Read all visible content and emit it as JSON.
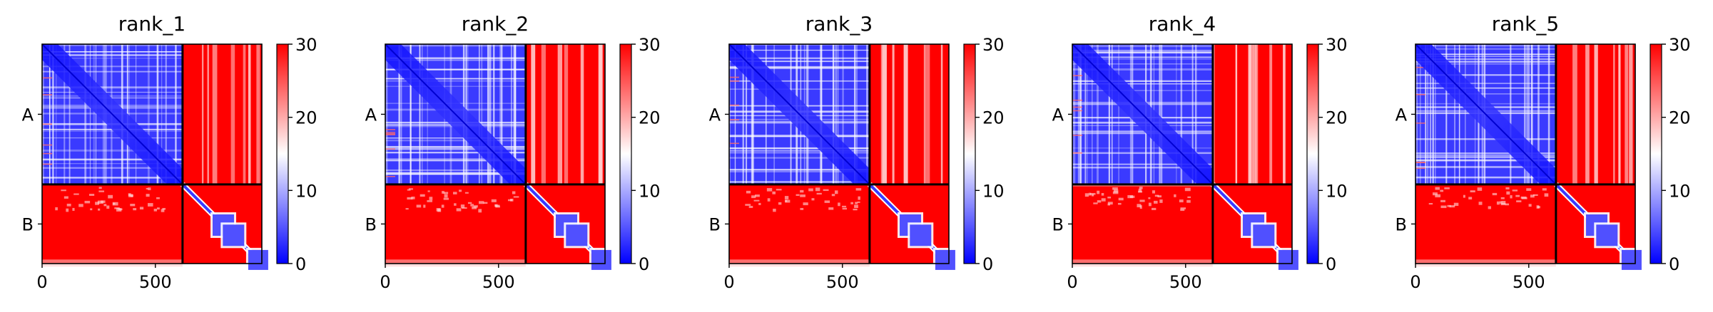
{
  "figure": {
    "colormap": "bwr",
    "colors": {
      "low": "#0000ff",
      "mid": "#ffffff",
      "high": "#ff0000",
      "frame": "#000000",
      "divider": "#000000"
    }
  },
  "chart_data": [
    {
      "type": "heatmap",
      "title": "rank_1",
      "chain_labels": [
        "A",
        "B"
      ],
      "chain_boundary": 620,
      "total_length": 970,
      "xticks": [
        0,
        500
      ],
      "colorbar": {
        "ticks": [
          0,
          10,
          20,
          30
        ],
        "range": [
          0,
          30
        ]
      },
      "xlim": [
        0,
        970
      ],
      "ylim": [
        970,
        0
      ]
    },
    {
      "type": "heatmap",
      "title": "rank_2",
      "chain_labels": [
        "A",
        "B"
      ],
      "chain_boundary": 620,
      "total_length": 970,
      "xticks": [
        0,
        500
      ],
      "colorbar": {
        "ticks": [
          0,
          10,
          20,
          30
        ],
        "range": [
          0,
          30
        ]
      },
      "xlim": [
        0,
        970
      ],
      "ylim": [
        970,
        0
      ]
    },
    {
      "type": "heatmap",
      "title": "rank_3",
      "chain_labels": [
        "A",
        "B"
      ],
      "chain_boundary": 620,
      "total_length": 970,
      "xticks": [
        0,
        500
      ],
      "colorbar": {
        "ticks": [
          0,
          10,
          20,
          30
        ],
        "range": [
          0,
          30
        ]
      },
      "xlim": [
        0,
        970
      ],
      "ylim": [
        970,
        0
      ]
    },
    {
      "type": "heatmap",
      "title": "rank_4",
      "chain_labels": [
        "A",
        "B"
      ],
      "chain_boundary": 620,
      "total_length": 970,
      "xticks": [
        0,
        500
      ],
      "colorbar": {
        "ticks": [
          0,
          10,
          20,
          30
        ],
        "range": [
          0,
          30
        ]
      },
      "xlim": [
        0,
        970
      ],
      "ylim": [
        970,
        0
      ]
    },
    {
      "type": "heatmap",
      "title": "rank_5",
      "chain_labels": [
        "A",
        "B"
      ],
      "chain_boundary": 620,
      "total_length": 970,
      "xticks": [
        0,
        500
      ],
      "colorbar": {
        "ticks": [
          0,
          10,
          20,
          30
        ],
        "range": [
          0,
          30
        ]
      },
      "xlim": [
        0,
        970
      ],
      "ylim": [
        970,
        0
      ]
    }
  ]
}
